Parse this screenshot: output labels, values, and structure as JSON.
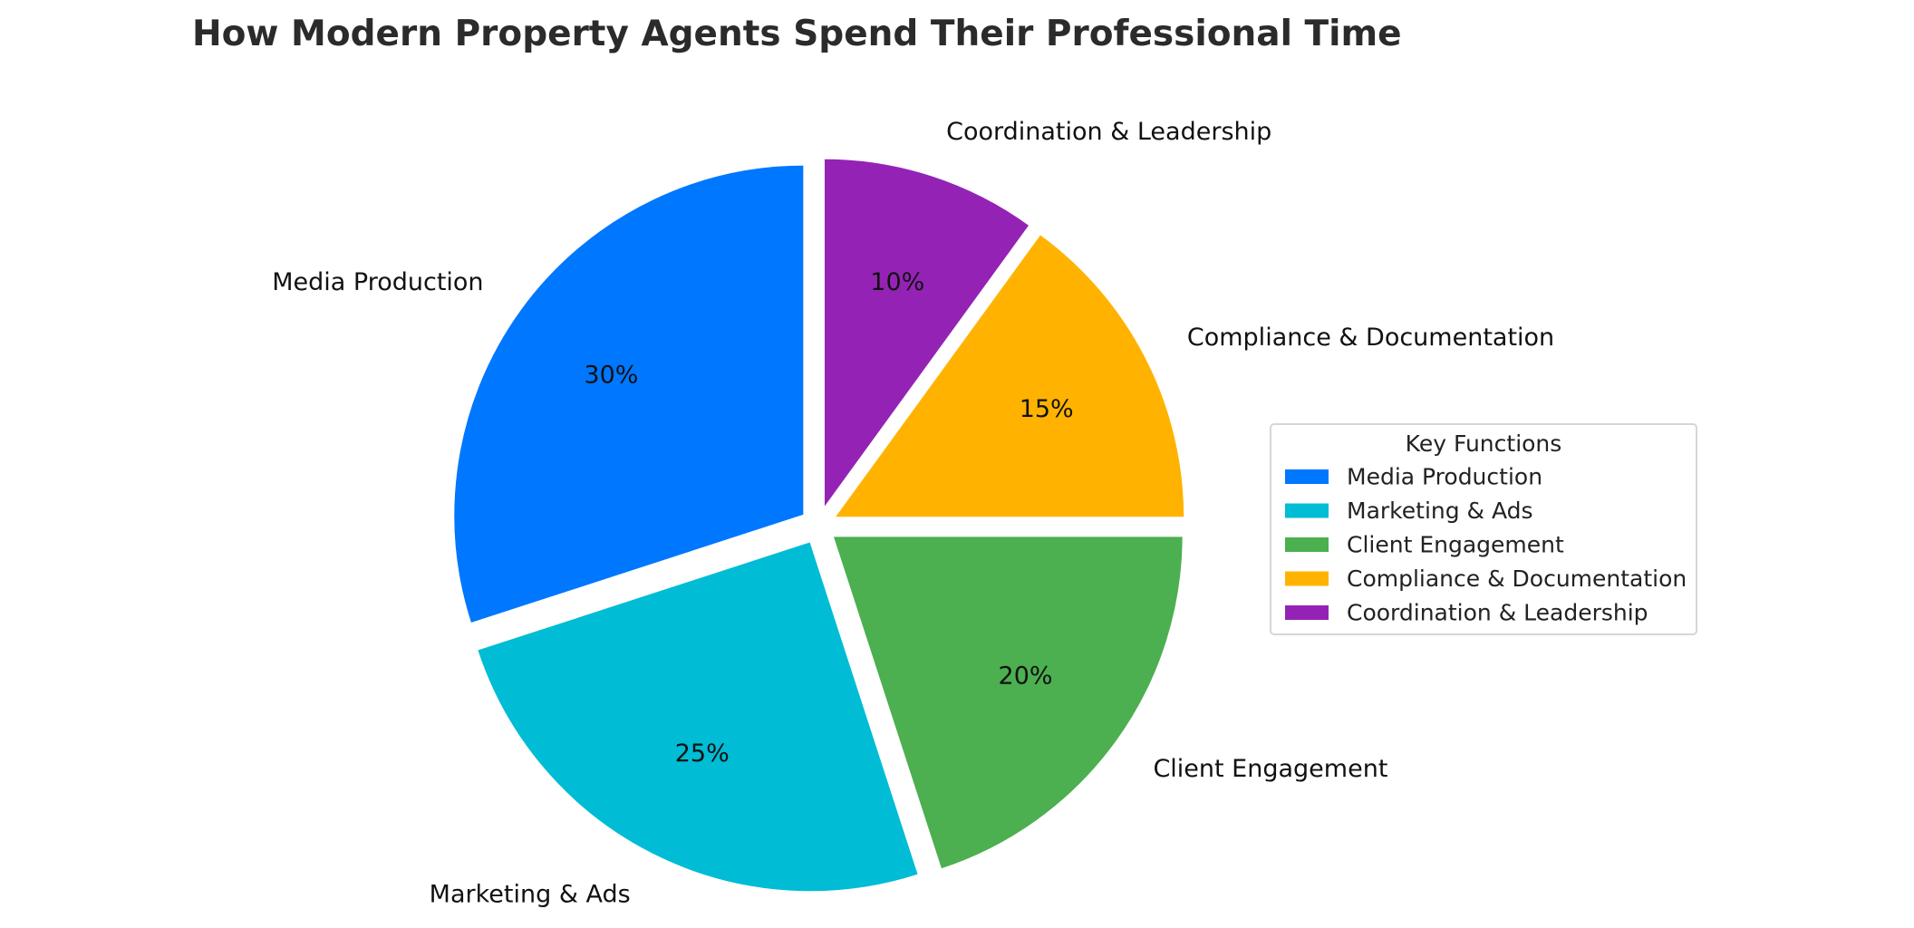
{
  "chart_data": {
    "type": "pie",
    "title": "How Modern Property Agents Spend Their Professional Time",
    "categories": [
      "Media Production",
      "Marketing & Ads",
      "Client Engagement",
      "Compliance & Documentation",
      "Coordination & Leadership"
    ],
    "values": [
      30,
      25,
      20,
      15,
      10
    ],
    "value_labels": [
      "30%",
      "25%",
      "20%",
      "15%",
      "10%"
    ],
    "colors": [
      "#0077ff",
      "#00bcd4",
      "#4caf50",
      "#ffb300",
      "#9423b5"
    ],
    "exploded": true,
    "legend": {
      "title": "Key Functions",
      "placement": "center-right",
      "entries": [
        "Media Production",
        "Marketing & Ads",
        "Client Engagement",
        "Compliance & Documentation",
        "Coordination & Leadership"
      ]
    }
  }
}
